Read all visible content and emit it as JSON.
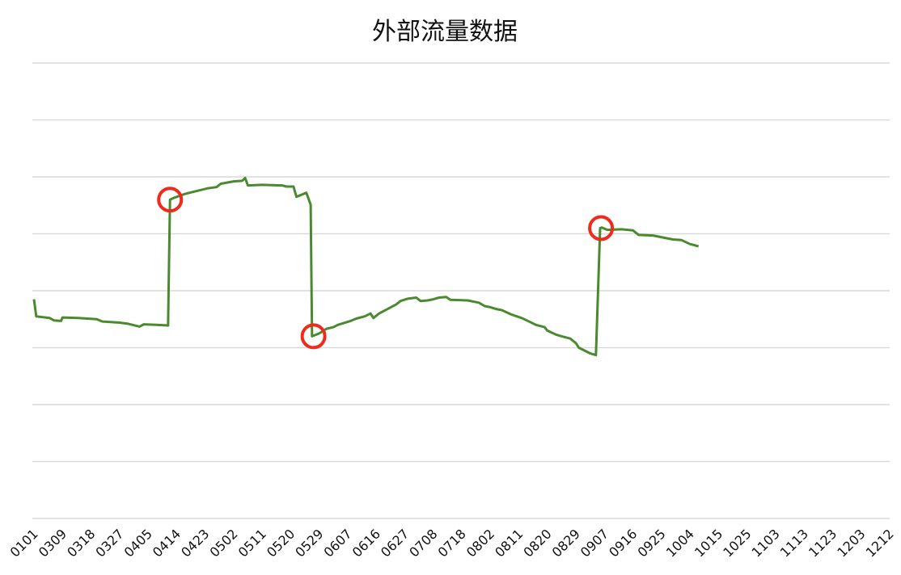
{
  "chart_data": {
    "type": "line",
    "title": "外部流量数据",
    "xlabel": "",
    "ylabel": "",
    "ylim": [
      0,
      8
    ],
    "grid": true,
    "y_tick_labels_shown": false,
    "categories": [
      "0101",
      "0309",
      "0318",
      "0327",
      "0405",
      "0414",
      "0423",
      "0502",
      "0511",
      "0520",
      "0529",
      "0607",
      "0616",
      "0627",
      "0708",
      "0718",
      "0802",
      "0811",
      "0820",
      "0829",
      "0907",
      "0916",
      "0925",
      "1004",
      "1015",
      "1025",
      "1103",
      "1113",
      "1123",
      "1203",
      "1212"
    ],
    "series": [
      {
        "color": "#4a8a2e",
        "points": [
          [
            0.0,
            3.85
          ],
          [
            0.08,
            3.55
          ],
          [
            0.55,
            3.52
          ],
          [
            0.7,
            3.48
          ],
          [
            0.95,
            3.47
          ],
          [
            1.0,
            3.53
          ],
          [
            1.55,
            3.52
          ],
          [
            2.2,
            3.5
          ],
          [
            2.4,
            3.46
          ],
          [
            3.0,
            3.44
          ],
          [
            3.3,
            3.42
          ],
          [
            3.7,
            3.37
          ],
          [
            3.85,
            3.41
          ],
          [
            4.3,
            3.4
          ],
          [
            4.7,
            3.39
          ],
          [
            4.77,
            5.6
          ],
          [
            4.9,
            5.63
          ],
          [
            5.3,
            5.7
          ],
          [
            5.7,
            5.75
          ],
          [
            6.1,
            5.8
          ],
          [
            6.4,
            5.82
          ],
          [
            6.55,
            5.88
          ],
          [
            7.0,
            5.92
          ],
          [
            7.3,
            5.93
          ],
          [
            7.4,
            5.98
          ],
          [
            7.5,
            5.85
          ],
          [
            8.0,
            5.86
          ],
          [
            8.7,
            5.85
          ],
          [
            8.85,
            5.83
          ],
          [
            9.1,
            5.83
          ],
          [
            9.2,
            5.65
          ],
          [
            9.45,
            5.7
          ],
          [
            9.55,
            5.72
          ],
          [
            9.7,
            5.51
          ],
          [
            9.75,
            3.2
          ],
          [
            10.0,
            3.25
          ],
          [
            10.25,
            3.33
          ],
          [
            10.5,
            3.36
          ],
          [
            10.65,
            3.4
          ],
          [
            11.1,
            3.47
          ],
          [
            11.3,
            3.51
          ],
          [
            11.6,
            3.55
          ],
          [
            11.8,
            3.6
          ],
          [
            11.9,
            3.52
          ],
          [
            12.1,
            3.6
          ],
          [
            12.4,
            3.68
          ],
          [
            12.7,
            3.76
          ],
          [
            12.85,
            3.82
          ],
          [
            13.1,
            3.86
          ],
          [
            13.4,
            3.88
          ],
          [
            13.55,
            3.82
          ],
          [
            13.8,
            3.83
          ],
          [
            14.0,
            3.85
          ],
          [
            14.2,
            3.88
          ],
          [
            14.45,
            3.89
          ],
          [
            14.6,
            3.84
          ],
          [
            15.2,
            3.83
          ],
          [
            15.6,
            3.79
          ],
          [
            15.8,
            3.73
          ],
          [
            16.0,
            3.71
          ],
          [
            16.2,
            3.68
          ],
          [
            16.4,
            3.66
          ],
          [
            16.75,
            3.58
          ],
          [
            17.1,
            3.52
          ],
          [
            17.4,
            3.45
          ],
          [
            17.6,
            3.4
          ],
          [
            17.9,
            3.36
          ],
          [
            18.0,
            3.3
          ],
          [
            18.3,
            3.23
          ],
          [
            18.5,
            3.2
          ],
          [
            18.8,
            3.16
          ],
          [
            19.0,
            3.08
          ],
          [
            19.1,
            3.0
          ],
          [
            19.5,
            2.9
          ],
          [
            19.7,
            2.87
          ],
          [
            19.85,
            5.1
          ],
          [
            19.9,
            5.11
          ],
          [
            20.1,
            5.07
          ],
          [
            20.6,
            5.08
          ],
          [
            21.0,
            5.06
          ],
          [
            21.2,
            4.98
          ],
          [
            21.7,
            4.97
          ],
          [
            21.9,
            4.95
          ],
          [
            22.2,
            4.92
          ],
          [
            22.4,
            4.9
          ],
          [
            22.7,
            4.89
          ],
          [
            23.0,
            4.82
          ],
          [
            23.3,
            4.78
          ]
        ]
      }
    ],
    "markers": [
      {
        "x": 4.77,
        "y": 5.6
      },
      {
        "x": 9.8,
        "y": 3.2
      },
      {
        "x": 19.88,
        "y": 5.1
      }
    ],
    "marker_color": "#ee2b1c",
    "grid_color": "#d9d9d9"
  }
}
